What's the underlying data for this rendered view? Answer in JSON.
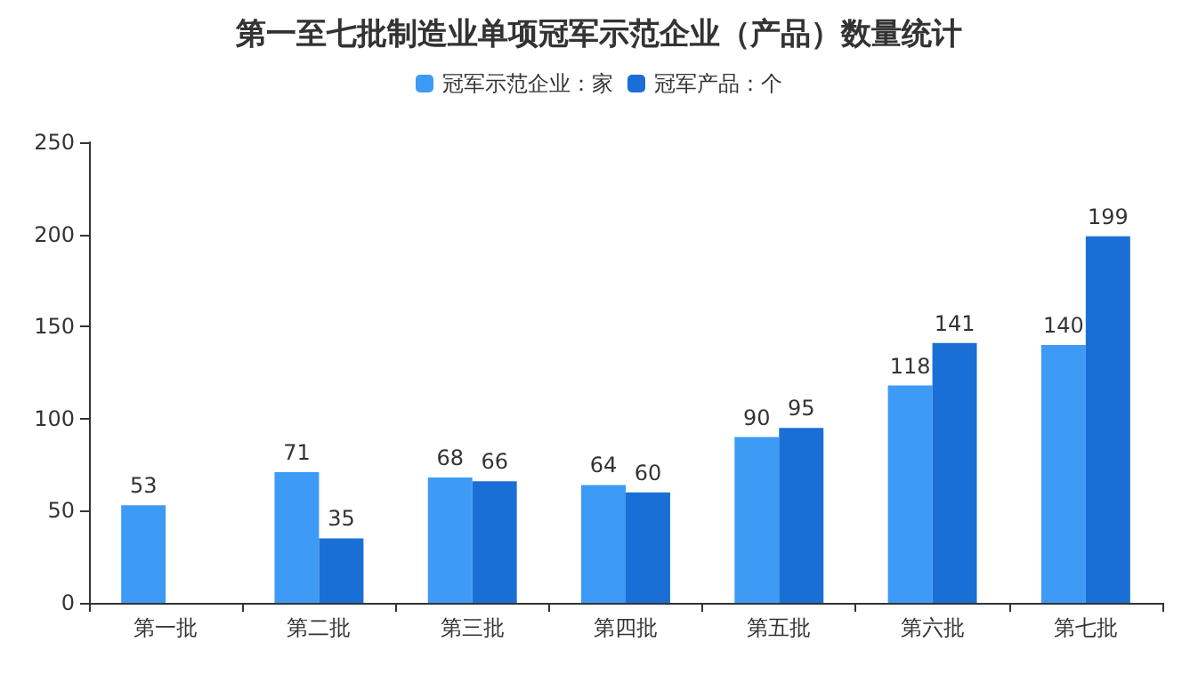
{
  "chart_data": {
    "type": "bar",
    "title": "第一至七批制造业单项冠军示范企业（产品）数量统计",
    "categories": [
      "第一批",
      "第二批",
      "第三批",
      "第四批",
      "第五批",
      "第六批",
      "第七批"
    ],
    "series": [
      {
        "name": "冠军示范企业：家",
        "color": "#3d9bf5",
        "values": [
          53,
          71,
          68,
          64,
          90,
          118,
          140
        ]
      },
      {
        "name": "冠军产品：个",
        "color": "#1a6fd6",
        "values": [
          null,
          35,
          66,
          60,
          95,
          141,
          199
        ]
      }
    ],
    "ylim": [
      0,
      250
    ],
    "yticks": [
      0,
      50,
      100,
      150,
      200,
      250
    ],
    "grid": false,
    "legend": "top",
    "data_labels": true
  }
}
